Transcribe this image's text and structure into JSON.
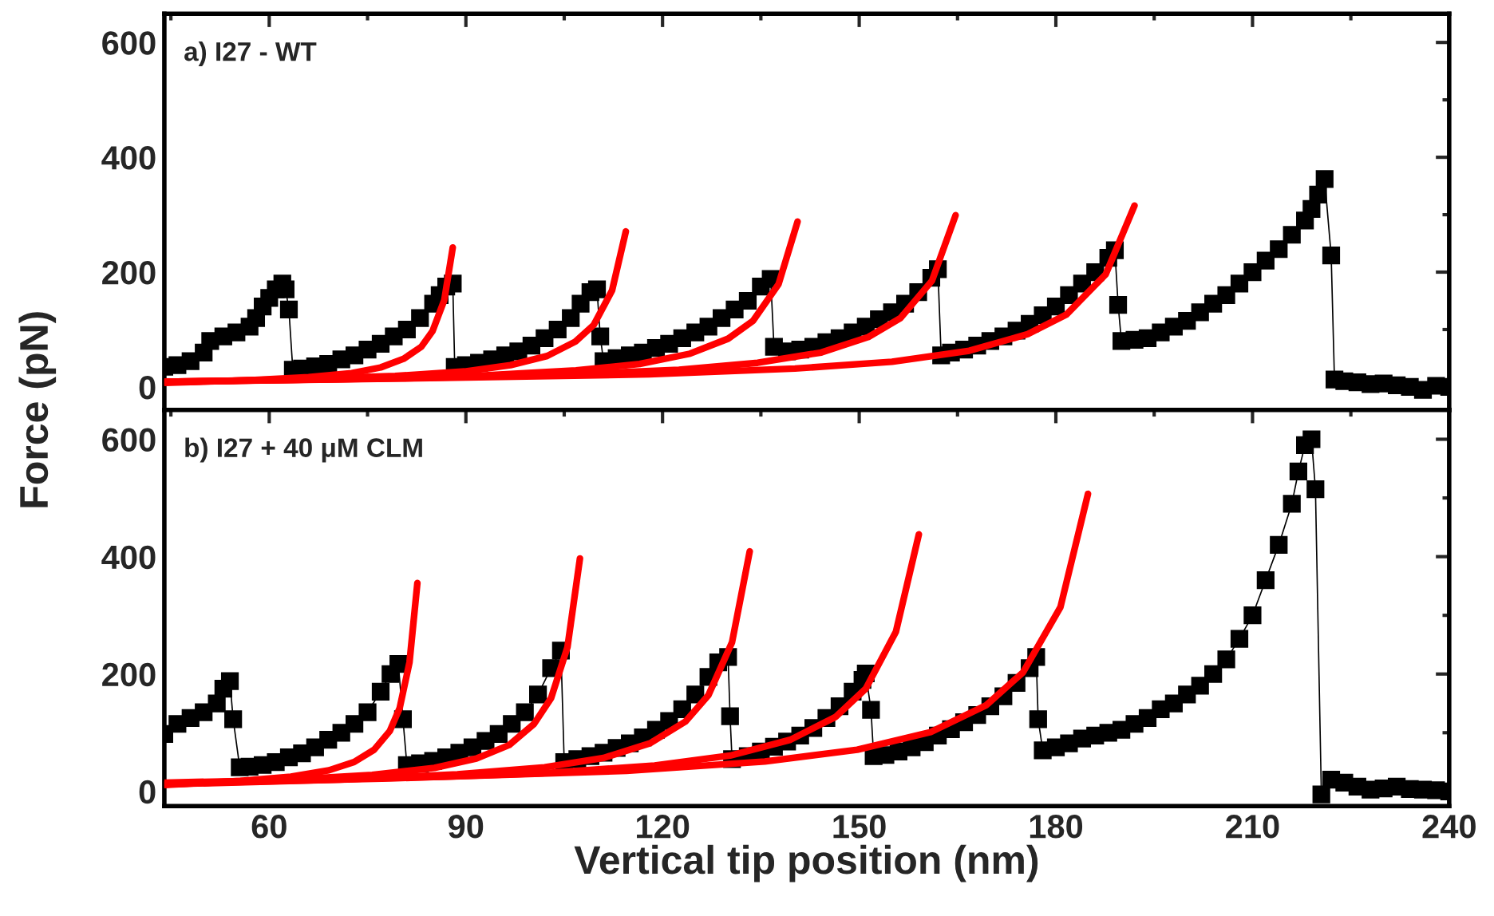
{
  "chart_data": [
    {
      "type": "line",
      "title": "a) I27 - WT",
      "ylabel": "Force (pN)",
      "xlim": [
        44,
        240
      ],
      "ylim": [
        -40,
        650
      ],
      "xticks": [
        60,
        90,
        120,
        150,
        180,
        210,
        240
      ],
      "yticks": [
        0,
        200,
        400,
        600
      ],
      "tick_labels": "y",
      "series": [
        {
          "color": "#000000",
          "marker": "square",
          "line_style": "solid",
          "x": [
            44,
            46,
            48,
            50,
            51,
            53,
            55,
            57,
            58,
            59,
            60,
            61,
            62,
            62.5,
            63,
            63.6,
            65,
            67,
            69,
            71,
            73,
            75,
            77,
            79,
            81,
            83,
            85,
            86,
            87,
            88,
            88.3,
            90,
            92,
            94,
            96,
            98,
            100,
            102,
            104,
            106,
            107.5,
            109,
            110,
            110.5,
            111,
            113,
            115,
            117,
            119,
            121,
            123,
            125,
            127,
            129,
            131,
            133,
            135,
            136.5,
            137,
            139,
            141,
            143,
            145,
            147,
            149,
            151,
            153,
            155,
            157,
            159,
            161,
            162,
            162.5,
            164,
            166,
            168,
            170,
            172,
            174,
            176,
            178,
            180,
            182,
            184,
            186,
            188,
            189,
            189.5,
            190,
            192,
            194,
            196,
            198,
            200,
            202,
            204,
            206,
            208,
            210,
            212,
            214,
            216,
            218,
            219,
            220,
            221,
            222,
            222.5,
            224,
            226,
            228,
            230,
            232,
            234,
            236,
            238,
            240
          ],
          "values": [
            35,
            38,
            45,
            60,
            80,
            88,
            95,
            105,
            120,
            140,
            155,
            170,
            180,
            170,
            135,
            30,
            32,
            36,
            40,
            48,
            55,
            65,
            75,
            88,
            100,
            120,
            145,
            160,
            175,
            180,
            35,
            38,
            42,
            48,
            55,
            62,
            72,
            85,
            100,
            120,
            145,
            165,
            170,
            88,
            45,
            50,
            55,
            60,
            68,
            75,
            85,
            95,
            105,
            120,
            135,
            150,
            175,
            188,
            70,
            62,
            65,
            70,
            78,
            85,
            95,
            105,
            118,
            130,
            145,
            165,
            190,
            205,
            55,
            60,
            65,
            72,
            80,
            88,
            98,
            110,
            125,
            140,
            160,
            180,
            200,
            225,
            238,
            143,
            80,
            82,
            85,
            95,
            105,
            115,
            130,
            145,
            160,
            180,
            200,
            220,
            240,
            265,
            290,
            310,
            335,
            362,
            229,
            13,
            10,
            8,
            5,
            6,
            3,
            0,
            -5,
            2,
            0
          ]
        },
        {
          "color": "#ff0000",
          "marker": "none",
          "line_style": "solid",
          "x": [
            44,
            57.2,
            66,
            72.6,
            77,
            80.5,
            83.2,
            84.9,
            86.7,
            88
          ],
          "values": [
            7,
            12,
            17,
            24,
            34,
            49,
            70,
            97,
            151,
            243
          ]
        },
        {
          "color": "#ff0000",
          "marker": "none",
          "line_style": "solid",
          "x": [
            44,
            65.1,
            79.2,
            89.8,
            96.8,
            102.4,
            106.7,
            109.5,
            112.3,
            114.4
          ],
          "values": [
            8,
            14,
            19,
            27,
            38,
            54,
            79,
            108,
            168,
            271
          ]
        },
        {
          "color": "#ff0000",
          "marker": "none",
          "line_style": "solid",
          "x": [
            44,
            73,
            92.3,
            106.8,
            116.5,
            124.2,
            130,
            133.8,
            137.7,
            140.6
          ],
          "values": [
            9,
            14,
            20,
            29,
            40,
            58,
            84,
            115,
            179,
            288
          ]
        },
        {
          "color": "#ff0000",
          "marker": "none",
          "line_style": "solid",
          "x": [
            44,
            80.2,
            104.4,
            122.5,
            134.5,
            144.2,
            151.4,
            156.3,
            161.1,
            164.7
          ],
          "values": [
            9,
            15,
            21,
            30,
            42,
            60,
            87,
            120,
            185,
            299
          ]
        },
        {
          "color": "#ff0000",
          "marker": "none",
          "line_style": "solid",
          "x": [
            44,
            88.4,
            118,
            140.2,
            155,
            166.8,
            175.7,
            181.6,
            187.6,
            192
          ],
          "values": [
            9,
            16,
            22,
            32,
            44,
            63,
            92,
            126,
            196,
            316
          ]
        }
      ]
    },
    {
      "type": "line",
      "title": "b) I27 + 40 μM CLM",
      "xlabel": "Vertical tip position (nm)",
      "xlim": [
        44,
        240
      ],
      "ylim": [
        -25,
        650
      ],
      "xticks": [
        60,
        90,
        120,
        150,
        180,
        210,
        240
      ],
      "yticks": [
        0,
        200,
        400,
        600
      ],
      "series": [
        {
          "color": "#000000",
          "marker": "square",
          "line_style": "solid",
          "x": [
            44,
            46,
            48,
            50,
            52,
            53,
            54,
            54.5,
            55.5,
            57,
            59,
            61,
            63,
            65,
            67,
            69,
            71,
            73,
            75,
            77,
            78.5,
            79.7,
            80.4,
            81,
            83,
            85,
            87,
            89,
            91,
            93,
            95,
            97,
            99,
            101,
            103,
            104.5,
            105,
            107,
            109,
            111,
            113,
            115,
            117,
            119,
            121,
            123,
            125,
            127,
            128.5,
            130,
            130.3,
            130.6,
            133,
            135,
            137,
            139,
            141,
            143,
            145,
            147,
            149,
            150.5,
            151,
            151.8,
            152.2,
            154,
            156,
            158,
            160,
            162,
            164,
            166,
            168,
            170,
            172,
            174,
            176,
            177,
            177.3,
            178,
            180,
            182,
            184,
            186,
            188,
            190,
            192,
            194,
            196,
            198,
            200,
            202,
            204,
            206,
            208,
            210,
            212,
            214,
            216,
            217,
            218,
            219,
            219.6,
            220.5,
            222,
            224,
            226,
            228,
            230,
            232,
            234,
            236,
            238,
            240
          ],
          "values": [
            98,
            115,
            125,
            135,
            150,
            175,
            188,
            123,
            41,
            42,
            45,
            50,
            58,
            65,
            75,
            88,
            100,
            115,
            135,
            170,
            200,
            217,
            123,
            45,
            48,
            52,
            58,
            66,
            75,
            86,
            98,
            115,
            135,
            165,
            210,
            240,
            50,
            55,
            60,
            66,
            74,
            82,
            92,
            105,
            120,
            140,
            165,
            195,
            220,
            229,
            128,
            55,
            60,
            68,
            76,
            85,
            95,
            108,
            125,
            145,
            170,
            190,
            201,
            139,
            60,
            62,
            68,
            75,
            84,
            95,
            106,
            118,
            130,
            145,
            162,
            185,
            210,
            229,
            123,
            70,
            75,
            82,
            90,
            95,
            100,
            105,
            115,
            125,
            140,
            150,
            165,
            180,
            200,
            225,
            260,
            300,
            360,
            420,
            490,
            545,
            590,
            600,
            515,
            -5,
            20,
            15,
            8,
            3,
            5,
            8,
            4,
            3,
            2,
            0
          ]
        },
        {
          "color": "#ff0000",
          "marker": "none",
          "line_style": "solid",
          "x": [
            44,
            55.6,
            63.3,
            69.1,
            72.95,
            76,
            78.4,
            79.9,
            81.4,
            82.6
          ],
          "values": [
            11,
            18,
            25,
            36,
            50,
            71,
            103,
            142,
            220,
            355
          ]
        },
        {
          "color": "#ff0000",
          "marker": "none",
          "line_style": "solid",
          "x": [
            44,
            63,
            75.7,
            85.2,
            91.6,
            96.6,
            100.4,
            103,
            105.5,
            107.4
          ],
          "values": [
            12,
            20,
            28,
            40,
            56,
            79,
            115,
            159,
            246,
            397
          ]
        },
        {
          "color": "#ff0000",
          "marker": "none",
          "line_style": "solid",
          "x": [
            44,
            70.8,
            88.7,
            102,
            111,
            118.1,
            123.5,
            127,
            130.6,
            133.3
          ],
          "values": [
            12,
            20,
            29,
            41,
            57,
            82,
            119,
            164,
            254,
            409
          ]
        },
        {
          "color": "#ff0000",
          "marker": "none",
          "line_style": "solid",
          "x": [
            44,
            78.5,
            101.6,
            118.8,
            130.3,
            139.5,
            146.4,
            151,
            155.6,
            159.1
          ],
          "values": [
            13,
            22,
            31,
            44,
            61,
            88,
            127,
            175,
            272,
            438
          ]
        },
        {
          "color": "#ff0000",
          "marker": "none",
          "line_style": "solid",
          "x": [
            44,
            86.3,
            114.5,
            135.6,
            149.7,
            160.9,
            169.4,
            175,
            180.7,
            184.9
          ],
          "values": [
            15,
            25,
            35,
            51,
            71,
            101,
            147,
            203,
            314,
            507
          ]
        }
      ]
    }
  ]
}
